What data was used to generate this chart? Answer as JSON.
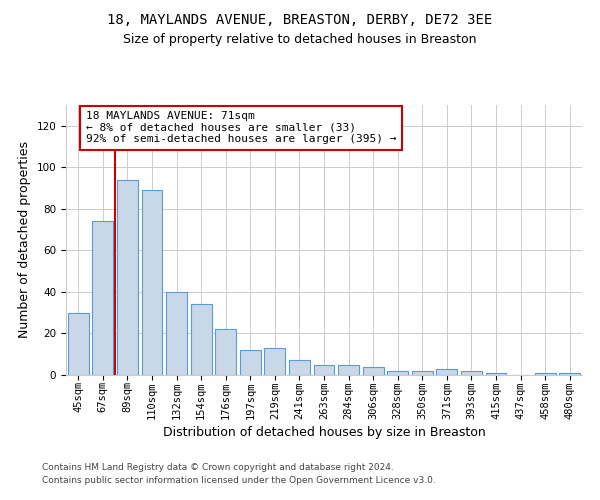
{
  "title_line1": "18, MAYLANDS AVENUE, BREASTON, DERBY, DE72 3EE",
  "title_line2": "Size of property relative to detached houses in Breaston",
  "xlabel": "Distribution of detached houses by size in Breaston",
  "ylabel": "Number of detached properties",
  "categories": [
    "45sqm",
    "67sqm",
    "89sqm",
    "110sqm",
    "132sqm",
    "154sqm",
    "176sqm",
    "197sqm",
    "219sqm",
    "241sqm",
    "263sqm",
    "284sqm",
    "306sqm",
    "328sqm",
    "350sqm",
    "371sqm",
    "393sqm",
    "415sqm",
    "437sqm",
    "458sqm",
    "480sqm"
  ],
  "values": [
    30,
    74,
    94,
    89,
    40,
    34,
    22,
    12,
    13,
    7,
    5,
    5,
    4,
    2,
    2,
    3,
    2,
    1,
    0,
    1,
    1
  ],
  "bar_color": "#c8d8e8",
  "bar_edge_color": "#5b9bd5",
  "vline_x": 1.5,
  "vline_color": "#cc0000",
  "annotation_text": "18 MAYLANDS AVENUE: 71sqm\n← 8% of detached houses are smaller (33)\n92% of semi-detached houses are larger (395) →",
  "annotation_box_color": "white",
  "annotation_box_edge_color": "#cc0000",
  "ylim": [
    0,
    130
  ],
  "yticks": [
    0,
    20,
    40,
    60,
    80,
    100,
    120
  ],
  "grid_color": "#cccccc",
  "background_color": "white",
  "footer_line1": "Contains HM Land Registry data © Crown copyright and database right 2024.",
  "footer_line2": "Contains public sector information licensed under the Open Government Licence v3.0.",
  "title_fontsize": 10,
  "subtitle_fontsize": 9,
  "axis_label_fontsize": 9,
  "tick_fontsize": 7.5,
  "annotation_fontsize": 8,
  "footer_fontsize": 6.5
}
